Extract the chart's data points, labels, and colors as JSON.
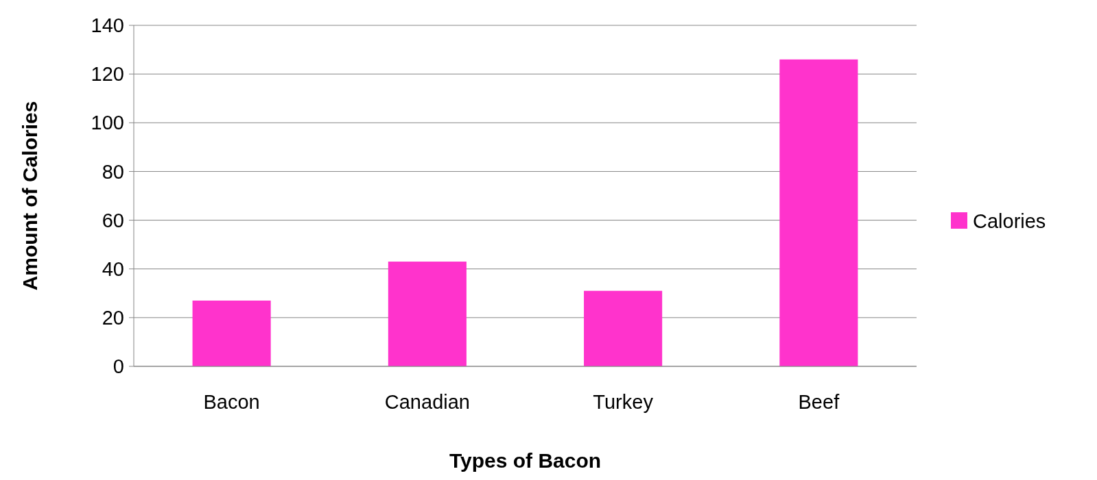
{
  "chart_data": {
    "type": "bar",
    "xlabel": "Types of Bacon",
    "ylabel": "Amount of Calories",
    "categories": [
      "Bacon",
      "Canadian",
      "Turkey",
      "Beef"
    ],
    "series": [
      {
        "name": "Calories",
        "color": "#ff33cc",
        "values": [
          27,
          43,
          31,
          126
        ]
      }
    ],
    "ylim": [
      0,
      140
    ],
    "yticks": [
      0,
      20,
      40,
      60,
      80,
      100,
      120,
      140
    ],
    "grid": "y",
    "legend": "right"
  }
}
